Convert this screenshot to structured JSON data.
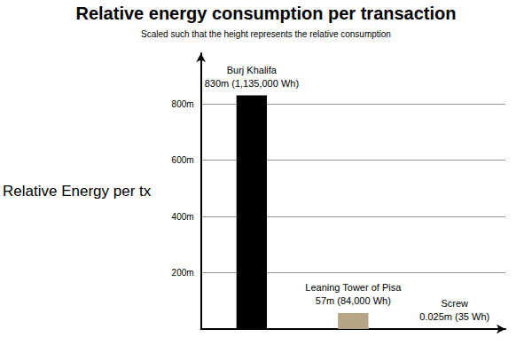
{
  "chart_data": {
    "type": "bar",
    "title": "Relative energy consumption per transaction",
    "subtitle": "Scaled such that the height represents the relative consumption",
    "y_label": "Relative Energy per tx",
    "categories": [
      null,
      null,
      null
    ],
    "annotations": [
      "Burj Khalifa",
      "Leaning Tower of Pisa",
      "Screw"
    ],
    "values": [
      830,
      57,
      0.025
    ],
    "value_labels": [
      "830m (1,135,000 Wh)",
      "57m (84,000 Wh)",
      "0.025m (35 Wh)"
    ],
    "colors": [
      "#000000",
      "#b5a585",
      "#8c8c8c"
    ],
    "ylim": [
      0,
      980
    ],
    "yticks": [
      {
        "value": 200,
        "label": "200m"
      },
      {
        "value": 400,
        "label": "400m"
      },
      {
        "value": 600,
        "label": "600m"
      },
      {
        "value": 800,
        "label": "800m"
      }
    ],
    "grid": true,
    "data_labels": true,
    "tick_labels": "y"
  }
}
